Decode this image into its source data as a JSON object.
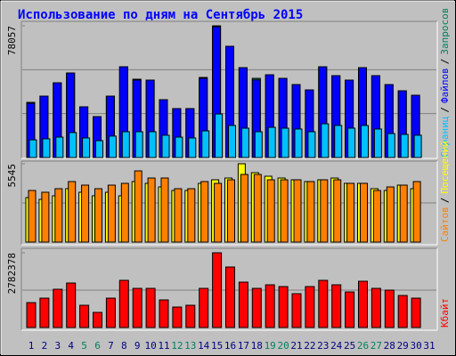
{
  "title": "Использование по дням на Сентябрь 2015",
  "separator": "/",
  "chart_data": [
    {
      "type": "bar",
      "ylim": [
        0,
        78057
      ],
      "yticks": [
        78057
      ],
      "series": [
        {
          "name": "Запросов",
          "color": "#00805c",
          "values": [
            32699,
            36391,
            44302,
            50104,
            30062,
            24261,
            36391,
            53796,
            46412,
            45885,
            34282,
            29008,
            29008,
            47467,
            78057,
            65927,
            53269,
            46940,
            49049,
            46940,
            43248,
            40083,
            53796,
            48522,
            45885,
            53269,
            48522,
            43248,
            39556,
            36919,
            null
          ]
        },
        {
          "name": "Файлов",
          "color": "#0000ff",
          "values": [
            32100,
            36391,
            44302,
            50104,
            30062,
            24261,
            36391,
            53796,
            45900,
            45885,
            34282,
            29008,
            29008,
            46900,
            77500,
            65927,
            53269,
            46000,
            49049,
            46940,
            43248,
            40083,
            53796,
            48522,
            45885,
            53269,
            48522,
            43248,
            39556,
            36919,
            null
          ]
        },
        {
          "name": "Страниц",
          "color": "#00c0ff",
          "values": [
            10500,
            11100,
            12100,
            14800,
            11600,
            10000,
            12700,
            15300,
            15300,
            15300,
            13200,
            12100,
            11600,
            15800,
            25800,
            19000,
            17400,
            15300,
            17900,
            17400,
            16900,
            15300,
            20000,
            19000,
            17400,
            19000,
            16900,
            14200,
            13700,
            13200,
            null
          ]
        }
      ]
    },
    {
      "type": "bar",
      "ylim": [
        0,
        5545
      ],
      "yticks": [
        5545
      ],
      "series": [
        {
          "name": "Посещений",
          "color": "#ffff00",
          "values": [
            3150,
            3024,
            3276,
            3780,
            3528,
            3276,
            3528,
            3276,
            4284,
            4158,
            3906,
            3654,
            3654,
            4158,
            4410,
            4536,
            5545,
            4914,
            4662,
            4536,
            4410,
            4284,
            4410,
            4536,
            4158,
            4158,
            3780,
            3654,
            4032,
            3780,
            null
          ]
        },
        {
          "name": "Сайтов",
          "color": "#ff8000",
          "values": [
            3654,
            3528,
            3780,
            4284,
            4032,
            3780,
            4032,
            4158,
            5040,
            4536,
            4536,
            3780,
            3780,
            4284,
            4158,
            4410,
            4788,
            4788,
            4410,
            4410,
            4410,
            4284,
            4410,
            4410,
            4158,
            4158,
            3654,
            3906,
            4032,
            4284,
            null
          ]
        }
      ]
    },
    {
      "type": "bar",
      "ylim": [
        0,
        2782378
      ],
      "yticks": [
        2782378
      ],
      "categories": [
        "1",
        "2",
        "3",
        "4",
        "5",
        "6",
        "7",
        "8",
        "9",
        "10",
        "11",
        "12",
        "13",
        "14",
        "15",
        "16",
        "17",
        "18",
        "19",
        "20",
        "21",
        "22",
        "23",
        "24",
        "25",
        "26",
        "27",
        "28",
        "29",
        "30",
        "31"
      ],
      "category_label_colors": [
        "#000080",
        "#000080",
        "#000080",
        "#000080",
        "#00805c",
        "#00805c",
        "#000080",
        "#000080",
        "#000080",
        "#000080",
        "#000080",
        "#00805c",
        "#00805c",
        "#000080",
        "#000080",
        "#000080",
        "#000080",
        "#000080",
        "#00805c",
        "#00805c",
        "#000080",
        "#000080",
        "#000080",
        "#000080",
        "#000080",
        "#00805c",
        "#00805c",
        "#000080",
        "#000080",
        "#000080",
        "#000080"
      ],
      "series": [
        {
          "name": "Кбайт",
          "color": "#ff0000",
          "values": [
            927000,
            1093000,
            1424000,
            1656000,
            828000,
            563000,
            1093000,
            1756000,
            1457000,
            1457000,
            1027000,
            762000,
            828000,
            1457000,
            2782378,
            2252000,
            1689000,
            1457000,
            1590000,
            1524000,
            1259000,
            1524000,
            1756000,
            1590000,
            1325000,
            1722000,
            1457000,
            1391000,
            1192000,
            1093000,
            null
          ]
        }
      ]
    }
  ]
}
